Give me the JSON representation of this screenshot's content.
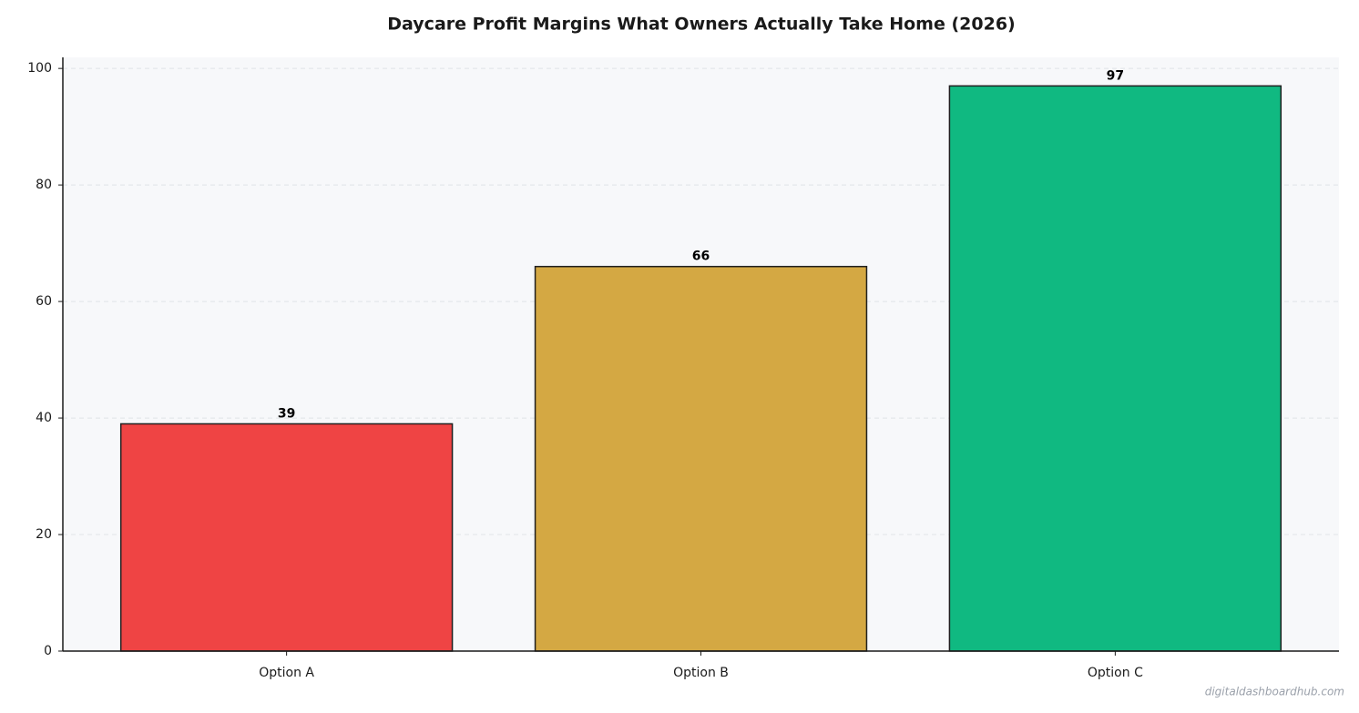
{
  "chart_data": {
    "type": "bar",
    "title": "Daycare Profit Margins  What Owners Actually Take Home (2026)",
    "categories": [
      "Option A",
      "Option B",
      "Option C"
    ],
    "values": [
      39,
      66,
      97
    ],
    "colors": [
      "#ef4444",
      "#d4a843",
      "#10b981"
    ],
    "ylim": [
      0,
      101.9
    ],
    "yticks": [
      0,
      20,
      40,
      60,
      80,
      100
    ],
    "grid": true,
    "watermark": "digitaldashboardhub.com"
  }
}
